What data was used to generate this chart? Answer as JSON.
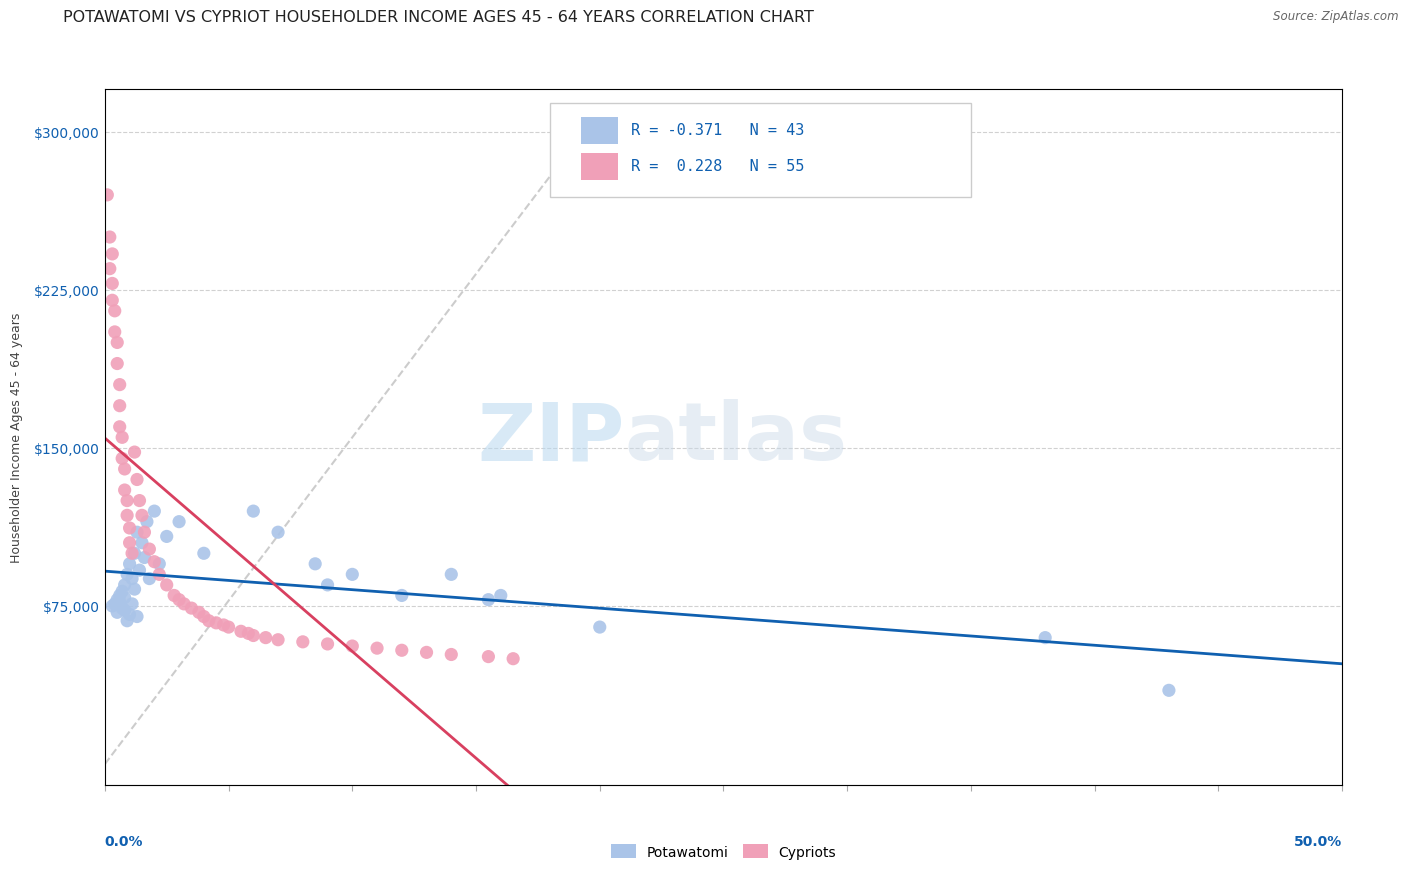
{
  "title": "POTAWATOMI VS CYPRIOT HOUSEHOLDER INCOME AGES 45 - 64 YEARS CORRELATION CHART",
  "source": "Source: ZipAtlas.com",
  "ylabel": "Householder Income Ages 45 - 64 years",
  "xlim": [
    0.0,
    0.5
  ],
  "ylim": [
    -10000,
    320000
  ],
  "yticks": [
    75000,
    150000,
    225000,
    300000
  ],
  "ytick_labels": [
    "$75,000",
    "$150,000",
    "$225,000",
    "$300,000"
  ],
  "bg_color": "#ffffff",
  "grid_color": "#cccccc",
  "watermark_zip": "ZIP",
  "watermark_atlas": "atlas",
  "legend_R1": "-0.371",
  "legend_N1": "43",
  "legend_R2": "0.228",
  "legend_N2": "55",
  "potawatomi_color": "#aac4e8",
  "cypriot_color": "#f0a0b8",
  "potawatomi_line_color": "#1060b0",
  "cypriot_line_color": "#d84060",
  "ref_line_color": "#c0c0c0",
  "title_fontsize": 11.5,
  "axis_label_fontsize": 9,
  "tick_fontsize": 10,
  "potawatomi_x": [
    0.003,
    0.004,
    0.005,
    0.005,
    0.006,
    0.006,
    0.007,
    0.007,
    0.008,
    0.008,
    0.008,
    0.009,
    0.009,
    0.01,
    0.01,
    0.011,
    0.011,
    0.012,
    0.012,
    0.013,
    0.013,
    0.014,
    0.015,
    0.016,
    0.017,
    0.018,
    0.02,
    0.022,
    0.025,
    0.03,
    0.04,
    0.06,
    0.07,
    0.085,
    0.09,
    0.1,
    0.12,
    0.14,
    0.155,
    0.16,
    0.2,
    0.38,
    0.43
  ],
  "potawatomi_y": [
    75000,
    76000,
    78000,
    72000,
    80000,
    77000,
    82000,
    74000,
    85000,
    79000,
    73000,
    90000,
    68000,
    95000,
    71000,
    88000,
    76000,
    100000,
    83000,
    110000,
    70000,
    92000,
    105000,
    98000,
    115000,
    88000,
    120000,
    95000,
    108000,
    115000,
    100000,
    120000,
    110000,
    95000,
    85000,
    90000,
    80000,
    90000,
    78000,
    80000,
    65000,
    60000,
    35000
  ],
  "cypriot_x": [
    0.001,
    0.002,
    0.002,
    0.003,
    0.003,
    0.003,
    0.004,
    0.004,
    0.005,
    0.005,
    0.006,
    0.006,
    0.006,
    0.007,
    0.007,
    0.008,
    0.008,
    0.009,
    0.009,
    0.01,
    0.01,
    0.011,
    0.012,
    0.013,
    0.014,
    0.015,
    0.016,
    0.018,
    0.02,
    0.022,
    0.025,
    0.028,
    0.03,
    0.032,
    0.035,
    0.038,
    0.04,
    0.042,
    0.045,
    0.048,
    0.05,
    0.055,
    0.058,
    0.06,
    0.065,
    0.07,
    0.08,
    0.09,
    0.1,
    0.11,
    0.12,
    0.13,
    0.14,
    0.155,
    0.165
  ],
  "cypriot_y": [
    270000,
    250000,
    235000,
    242000,
    228000,
    220000,
    215000,
    205000,
    200000,
    190000,
    180000,
    170000,
    160000,
    155000,
    145000,
    140000,
    130000,
    125000,
    118000,
    112000,
    105000,
    100000,
    148000,
    135000,
    125000,
    118000,
    110000,
    102000,
    96000,
    90000,
    85000,
    80000,
    78000,
    76000,
    74000,
    72000,
    70000,
    68000,
    67000,
    66000,
    65000,
    63000,
    62000,
    61000,
    60000,
    59000,
    58000,
    57000,
    56000,
    55000,
    54000,
    53000,
    52000,
    51000,
    50000
  ]
}
